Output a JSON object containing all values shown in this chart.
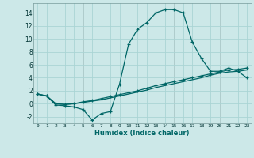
{
  "xlabel": "Humidex (Indice chaleur)",
  "bg_color": "#cce8e8",
  "grid_color": "#aad4d4",
  "red_grid_color": "#cc9999",
  "line_color": "#006666",
  "xlim": [
    -0.5,
    23.5
  ],
  "ylim": [
    -3.0,
    15.5
  ],
  "xticks": [
    0,
    1,
    2,
    3,
    4,
    5,
    6,
    7,
    8,
    9,
    10,
    11,
    12,
    13,
    14,
    15,
    16,
    17,
    18,
    19,
    20,
    21,
    22,
    23
  ],
  "yticks": [
    -2,
    0,
    2,
    4,
    6,
    8,
    10,
    12,
    14
  ],
  "line1_x": [
    0,
    1,
    2,
    3,
    4,
    5,
    6,
    7,
    8,
    9,
    10,
    11,
    12,
    13,
    14,
    15,
    16,
    17,
    18,
    19,
    20,
    21,
    22,
    23
  ],
  "line1_y": [
    1.5,
    1.2,
    -0.2,
    -0.3,
    -0.5,
    -0.9,
    -2.5,
    -1.5,
    -1.2,
    3.0,
    9.2,
    11.5,
    12.5,
    14.0,
    14.5,
    14.5,
    14.0,
    9.5,
    7.0,
    5.0,
    5.0,
    5.5,
    5.0,
    4.0
  ],
  "line2_x": [
    0,
    1,
    2,
    3,
    4,
    5,
    6,
    7,
    8,
    9,
    10,
    11,
    12,
    13,
    14,
    15,
    16,
    17,
    18,
    19,
    20,
    21,
    22,
    23
  ],
  "line2_y": [
    1.5,
    1.2,
    0.0,
    -0.1,
    0.0,
    0.3,
    0.5,
    0.8,
    1.1,
    1.4,
    1.7,
    2.0,
    2.4,
    2.8,
    3.1,
    3.4,
    3.7,
    4.0,
    4.3,
    4.6,
    4.9,
    5.2,
    5.3,
    5.5
  ],
  "line3_x": [
    0,
    1,
    2,
    3,
    4,
    5,
    6,
    7,
    8,
    9,
    10,
    11,
    12,
    13,
    14,
    15,
    16,
    17,
    18,
    19,
    20,
    21,
    22,
    23
  ],
  "line3_y": [
    1.5,
    1.2,
    0.0,
    -0.1,
    0.0,
    0.2,
    0.4,
    0.6,
    0.9,
    1.2,
    1.5,
    1.8,
    2.1,
    2.5,
    2.8,
    3.1,
    3.4,
    3.7,
    4.0,
    4.4,
    4.7,
    4.9,
    5.0,
    5.2
  ],
  "red_vlines": [
    5,
    10,
    15,
    20
  ]
}
